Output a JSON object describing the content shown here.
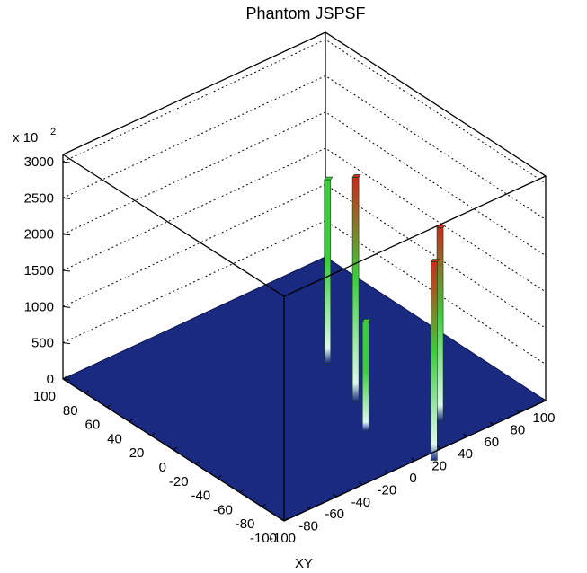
{
  "chart_data": {
    "type": "lego",
    "title": "Phantom  JSPSF",
    "xlabel": "",
    "ylabel": "XY",
    "zmultiplier": {
      "base": "x 10",
      "exp": "2"
    },
    "xlim": [
      -100,
      100
    ],
    "ylim": [
      -100,
      100
    ],
    "zlim": [
      0,
      3100
    ],
    "xticks": [
      100,
      80,
      60,
      40,
      20,
      0,
      -20,
      -40,
      -60,
      -80,
      -100
    ],
    "yticks": [
      -100,
      -80,
      -60,
      -40,
      -20,
      0,
      20,
      40,
      60,
      80,
      100
    ],
    "zticks": [
      0,
      500,
      1000,
      1500,
      2000,
      2500,
      3000
    ],
    "floor_color": "#1a2a80",
    "peak_colors": {
      "low": "#dff7f0",
      "mid": "#3ecb3e",
      "high": "#cc2a1c"
    },
    "grid": true,
    "peaks": [
      {
        "x": 50,
        "y": 60,
        "z": 1912
      },
      {
        "x": 8,
        "y": 46,
        "z": 2473
      },
      {
        "x": -20,
        "y": 30,
        "z": 885
      },
      {
        "x": -40,
        "y": 70,
        "z": 2050
      },
      {
        "x": -70,
        "y": 40,
        "z": 2120
      }
    ]
  }
}
